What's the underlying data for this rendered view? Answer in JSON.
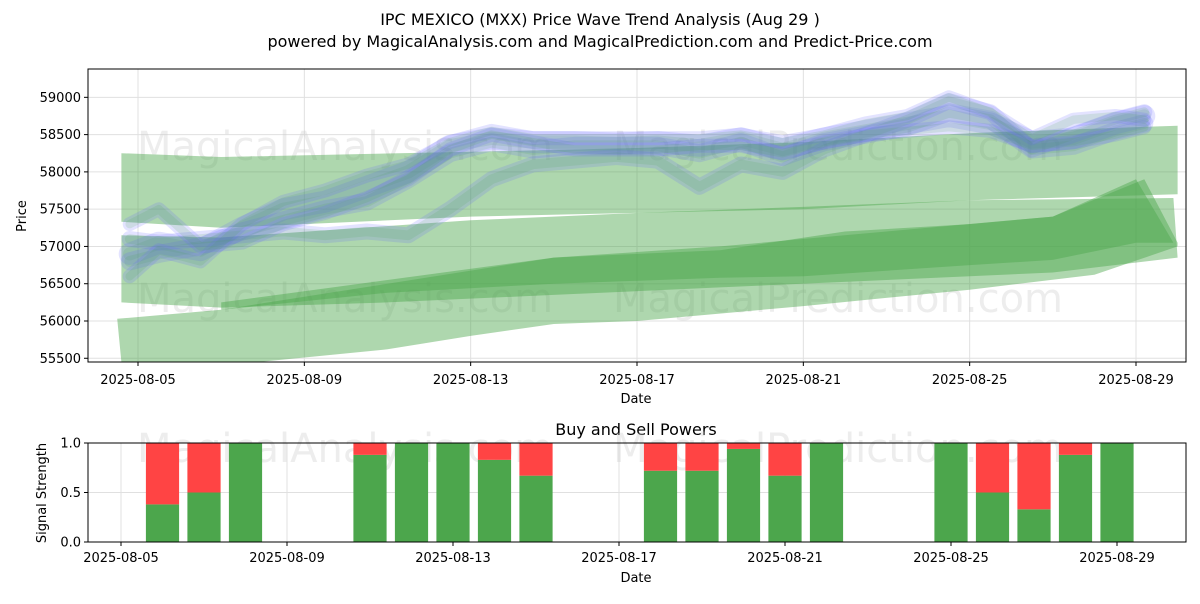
{
  "title": "IPC MEXICO (MXX) Price Wave Trend Analysis (Aug 29 )",
  "subtitle": "powered by MagicalAnalysis.com and MagicalPrediction.com and Predict-Price.com",
  "watermarks": [
    "MagicalAnalysis.com",
    "MagicalPrediction.com"
  ],
  "colors": {
    "buy": "#4ca64c",
    "sell": "#ff4444",
    "blue_band": "#6666ff",
    "green_band": "#4ca64c",
    "grid": "#e0e0e0"
  },
  "chart_data": [
    {
      "type": "area",
      "xlabel": "Date",
      "ylabel": "Price",
      "ylim": [
        55450,
        59380
      ],
      "xlim": [
        "2025-08-04",
        "2025-08-30"
      ],
      "grid": true,
      "x_ticks": [
        "2025-08-05",
        "2025-08-09",
        "2025-08-13",
        "2025-08-17",
        "2025-08-21",
        "2025-08-25",
        "2025-08-29"
      ],
      "y_ticks": [
        55500,
        56000,
        56500,
        57000,
        57500,
        58000,
        58500,
        59000
      ],
      "green_bands": [
        {
          "name": "upper-channel",
          "opacity": 0.45,
          "upper": [
            [
              "2025-08-04.6",
              58250
            ],
            [
              "2025-08-07",
              58200
            ],
            [
              "2025-08-13",
              58270
            ],
            [
              "2025-08-17",
              58320
            ],
            [
              "2025-08-21",
              58400
            ],
            [
              "2025-08-25",
              58520
            ],
            [
              "2025-08-30",
              58620
            ]
          ],
          "lower": [
            [
              "2025-08-04.6",
              57330
            ],
            [
              "2025-08-07",
              57250
            ],
            [
              "2025-08-13",
              57400
            ],
            [
              "2025-08-17",
              57450
            ],
            [
              "2025-08-21",
              57500
            ],
            [
              "2025-08-25",
              57620
            ],
            [
              "2025-08-30",
              57700
            ]
          ]
        },
        {
          "name": "middle-channel",
          "opacity": 0.45,
          "upper": [
            [
              "2025-08-04.6",
              57150
            ],
            [
              "2025-08-07",
              57120
            ],
            [
              "2025-08-13",
              57350
            ],
            [
              "2025-08-17",
              57450
            ],
            [
              "2025-08-21",
              57530
            ],
            [
              "2025-08-25",
              57620
            ],
            [
              "2025-08-29.9",
              57650
            ]
          ],
          "lower": [
            [
              "2025-08-04.6",
              56250
            ],
            [
              "2025-08-07",
              56180
            ],
            [
              "2025-08-11",
              56250
            ],
            [
              "2025-08-15",
              56350
            ],
            [
              "2025-08-19",
              56450
            ],
            [
              "2025-08-23",
              56550
            ],
            [
              "2025-08-27",
              56650
            ],
            [
              "2025-08-30",
              56850
            ]
          ]
        },
        {
          "name": "lower-channel",
          "opacity": 0.45,
          "upper": [
            [
              "2025-08-04.5",
              56030
            ],
            [
              "2025-08-07",
              56150
            ],
            [
              "2025-08-11",
              56500
            ],
            [
              "2025-08-15",
              56850
            ],
            [
              "2025-08-19",
              57000
            ],
            [
              "2025-08-23",
              57200
            ],
            [
              "2025-08-27",
              57400
            ],
            [
              "2025-08-29.2",
              57900
            ],
            [
              "2025-08-30",
              57050
            ]
          ],
          "lower": [
            [
              "2025-08-04.6",
              55450
            ],
            [
              "2025-08-07",
              55400
            ],
            [
              "2025-08-11",
              55620
            ],
            [
              "2025-08-13",
              55800
            ],
            [
              "2025-08-15",
              55960
            ],
            [
              "2025-08-17",
              56000
            ],
            [
              "2025-08-21",
              56200
            ],
            [
              "2025-08-25",
              56420
            ],
            [
              "2025-08-28",
              56620
            ],
            [
              "2025-08-30",
              57000
            ]
          ]
        },
        {
          "name": "trend-core",
          "opacity": 0.45,
          "upper": [
            [
              "2025-08-07",
              56250
            ],
            [
              "2025-08-11",
              56550
            ],
            [
              "2025-08-15",
              56850
            ],
            [
              "2025-08-19",
              56950
            ],
            [
              "2025-08-22",
              57200
            ],
            [
              "2025-08-25",
              57300
            ],
            [
              "2025-08-27",
              57400
            ],
            [
              "2025-08-29",
              57900
            ],
            [
              "2025-08-29.9",
              57050
            ]
          ],
          "lower": [
            [
              "2025-08-07",
              56150
            ],
            [
              "2025-08-11",
              56380
            ],
            [
              "2025-08-15",
              56500
            ],
            [
              "2025-08-19",
              56580
            ],
            [
              "2025-08-21",
              56600
            ],
            [
              "2025-08-25",
              56750
            ],
            [
              "2025-08-27",
              56820
            ],
            [
              "2025-08-29",
              57050
            ]
          ]
        }
      ],
      "blue_series": [
        {
          "values": [
            [
              4.8,
              56900
            ],
            [
              5.5,
              57050
            ],
            [
              6.5,
              56950
            ],
            [
              7.5,
              57250
            ],
            [
              8.5,
              57500
            ],
            [
              9.5,
              57600
            ],
            [
              10.5,
              57800
            ],
            [
              11.5,
              58000
            ],
            [
              12.5,
              58350
            ],
            [
              13.5,
              58450
            ],
            [
              14.5,
              58400
            ],
            [
              15.5,
              58400
            ],
            [
              16.5,
              58380
            ],
            [
              17.5,
              58400
            ],
            [
              18.5,
              58350
            ],
            [
              19.5,
              58450
            ],
            [
              20.5,
              58300
            ],
            [
              21.5,
              58450
            ],
            [
              22.5,
              58550
            ],
            [
              23.5,
              58650
            ],
            [
              24.5,
              58750
            ],
            [
              25.5,
              58650
            ],
            [
              26.5,
              58400
            ],
            [
              27.5,
              58450
            ],
            [
              28.5,
              58650
            ],
            [
              29.2,
              58750
            ]
          ],
          "width": 22
        },
        {
          "values": [
            [
              4.8,
              56800
            ],
            [
              5.5,
              56900
            ],
            [
              6.5,
              57000
            ],
            [
              7.5,
              57200
            ],
            [
              8.5,
              57350
            ],
            [
              9.5,
              57500
            ],
            [
              10.5,
              57600
            ],
            [
              11.5,
              57900
            ],
            [
              12.5,
              58250
            ],
            [
              13.5,
              58400
            ],
            [
              14.5,
              58300
            ],
            [
              15.5,
              58350
            ],
            [
              16.5,
              58350
            ],
            [
              17.5,
              58350
            ],
            [
              18.5,
              58250
            ],
            [
              19.5,
              58400
            ],
            [
              20.5,
              58200
            ],
            [
              21.5,
              58400
            ],
            [
              22.5,
              58500
            ],
            [
              23.5,
              58600
            ],
            [
              24.5,
              58800
            ],
            [
              25.5,
              58700
            ],
            [
              26.5,
              58300
            ],
            [
              27.5,
              58350
            ],
            [
              28.5,
              58550
            ],
            [
              29.2,
              58650
            ]
          ],
          "width": 18
        },
        {
          "values": [
            [
              4.8,
              57100
            ],
            [
              5.5,
              57050
            ],
            [
              6.5,
              57100
            ],
            [
              7.5,
              57150
            ],
            [
              8.5,
              57200
            ],
            [
              9.5,
              57150
            ],
            [
              10.5,
              57200
            ],
            [
              11.5,
              57150
            ],
            [
              12.5,
              57500
            ],
            [
              13.5,
              57900
            ],
            [
              14.5,
              58100
            ],
            [
              15.5,
              58150
            ],
            [
              16.5,
              58200
            ],
            [
              17.5,
              58150
            ],
            [
              18.5,
              57800
            ],
            [
              19.5,
              58100
            ],
            [
              20.5,
              58000
            ],
            [
              21.5,
              58300
            ],
            [
              22.5,
              58500
            ],
            [
              23.5,
              58700
            ],
            [
              24.5,
              58950
            ],
            [
              25.5,
              58800
            ],
            [
              26.5,
              58300
            ],
            [
              27.5,
              58500
            ],
            [
              28.5,
              58700
            ],
            [
              29.2,
              58800
            ]
          ],
          "width": 16
        },
        {
          "values": [
            [
              4.8,
              56600
            ],
            [
              5.5,
              56950
            ],
            [
              6.5,
              56800
            ],
            [
              7.5,
              57300
            ],
            [
              8.5,
              57600
            ],
            [
              9.5,
              57750
            ],
            [
              10.5,
              57950
            ],
            [
              11.5,
              58100
            ],
            [
              12.5,
              58400
            ],
            [
              13.5,
              58550
            ],
            [
              14.5,
              58450
            ],
            [
              15.5,
              58450
            ],
            [
              16.5,
              58450
            ],
            [
              17.5,
              58450
            ],
            [
              18.5,
              58450
            ],
            [
              19.5,
              58500
            ],
            [
              20.5,
              58400
            ],
            [
              21.5,
              58500
            ],
            [
              22.5,
              58650
            ],
            [
              23.5,
              58750
            ],
            [
              24.5,
              59000
            ],
            [
              25.5,
              58800
            ],
            [
              26.5,
              58450
            ],
            [
              27.5,
              58700
            ],
            [
              28.5,
              58750
            ],
            [
              29.2,
              58700
            ]
          ],
          "width": 14
        },
        {
          "values": [
            [
              4.8,
              57300
            ],
            [
              5.5,
              57500
            ],
            [
              6.5,
              57000
            ],
            [
              7.5,
              57050
            ],
            [
              8.5,
              57300
            ],
            [
              9.5,
              57450
            ],
            [
              10.5,
              57650
            ],
            [
              11.5,
              57900
            ],
            [
              12.5,
              58300
            ],
            [
              13.5,
              58500
            ],
            [
              14.5,
              58400
            ],
            [
              15.5,
              58300
            ],
            [
              16.5,
              58300
            ],
            [
              17.5,
              58300
            ],
            [
              18.5,
              58350
            ],
            [
              19.5,
              58350
            ],
            [
              20.5,
              58250
            ],
            [
              21.5,
              58400
            ],
            [
              22.5,
              58500
            ],
            [
              23.5,
              58550
            ],
            [
              24.5,
              58600
            ],
            [
              25.5,
              58550
            ],
            [
              26.5,
              58350
            ],
            [
              27.5,
              58400
            ],
            [
              28.5,
              58500
            ],
            [
              29.2,
              58600
            ]
          ],
          "width": 14
        }
      ]
    },
    {
      "type": "bar",
      "title": "Buy and Sell Powers",
      "xlabel": "Date",
      "ylabel": "Signal Strength",
      "ylim": [
        0,
        1
      ],
      "y_ticks": [
        "0.0",
        "0.5",
        "1.0"
      ],
      "x_ticks": [
        "2025-08-05",
        "2025-08-09",
        "2025-08-13",
        "2025-08-17",
        "2025-08-21",
        "2025-08-25",
        "2025-08-29"
      ],
      "xlim": [
        "2025-08-04",
        "2025-08-30"
      ],
      "series": [
        {
          "name": "buy",
          "values": [
            0.38,
            0.5,
            1.0,
            0.88,
            1.0,
            1.0,
            0.83,
            0.67,
            0.72,
            0.72,
            0.94,
            0.67,
            1.0,
            1.0,
            0.5,
            0.33,
            0.88,
            1.0
          ]
        },
        {
          "name": "sell",
          "values": [
            0.62,
            0.5,
            0.0,
            0.12,
            0.0,
            0.0,
            0.17,
            0.33,
            0.28,
            0.28,
            0.06,
            0.33,
            0.0,
            0.0,
            0.5,
            0.67,
            0.12,
            0.0
          ]
        }
      ],
      "categories": [
        "2025-08-06",
        "2025-08-07",
        "2025-08-08",
        "2025-08-11",
        "2025-08-12",
        "2025-08-13",
        "2025-08-14",
        "2025-08-15",
        "2025-08-18",
        "2025-08-19",
        "2025-08-20",
        "2025-08-21",
        "2025-08-22",
        "2025-08-25",
        "2025-08-26",
        "2025-08-27",
        "2025-08-28",
        "2025-08-29"
      ]
    }
  ]
}
